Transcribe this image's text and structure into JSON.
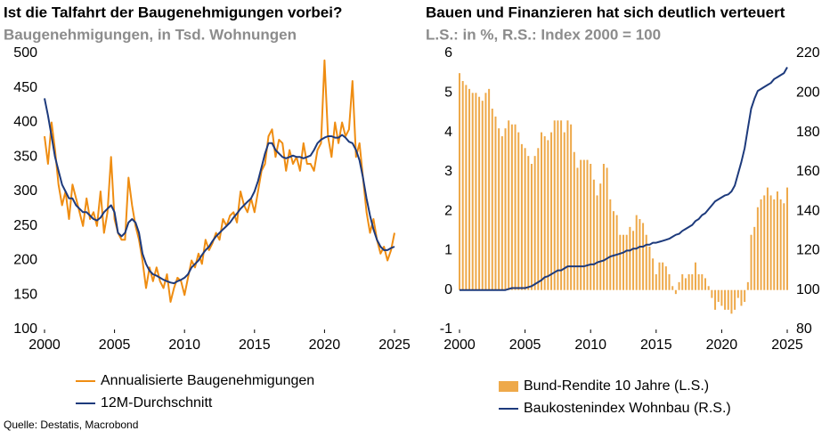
{
  "source": "Quelle: Destatis, Macrobond",
  "chart_data": [
    {
      "type": "line",
      "title": "Ist die Talfahrt der Baugenehmigungen vorbei?",
      "subtitle": "Baugenehmigungen, in Tsd. Wohnungen",
      "x": [
        2000,
        2000.25,
        2000.5,
        2000.75,
        2001,
        2001.25,
        2001.5,
        2001.75,
        2002,
        2002.25,
        2002.5,
        2002.75,
        2003,
        2003.25,
        2003.5,
        2003.75,
        2004,
        2004.25,
        2004.5,
        2004.75,
        2005,
        2005.25,
        2005.5,
        2005.75,
        2006,
        2006.25,
        2006.5,
        2006.75,
        2007,
        2007.25,
        2007.5,
        2007.75,
        2008,
        2008.25,
        2008.5,
        2008.75,
        2009,
        2009.25,
        2009.5,
        2009.75,
        2010,
        2010.25,
        2010.5,
        2010.75,
        2011,
        2011.25,
        2011.5,
        2011.75,
        2012,
        2012.25,
        2012.5,
        2012.75,
        2013,
        2013.25,
        2013.5,
        2013.75,
        2014,
        2014.25,
        2014.5,
        2014.75,
        2015,
        2015.25,
        2015.5,
        2015.75,
        2016,
        2016.25,
        2016.5,
        2016.75,
        2017,
        2017.25,
        2017.5,
        2017.75,
        2018,
        2018.25,
        2018.5,
        2018.75,
        2019,
        2019.25,
        2019.5,
        2019.75,
        2020,
        2020.25,
        2020.5,
        2020.75,
        2021,
        2021.25,
        2021.5,
        2021.75,
        2022,
        2022.25,
        2022.5,
        2022.75,
        2023,
        2023.25,
        2023.5,
        2023.75,
        2024,
        2024.25,
        2024.5,
        2024.75,
        2025
      ],
      "series": [
        {
          "name": "Annualisierte Baugenehmigungen",
          "color": "#ef8d12",
          "values": [
            380,
            340,
            400,
            360,
            310,
            280,
            300,
            260,
            310,
            290,
            270,
            250,
            290,
            260,
            270,
            250,
            300,
            240,
            270,
            350,
            260,
            240,
            230,
            230,
            320,
            280,
            250,
            230,
            200,
            160,
            190,
            170,
            190,
            170,
            160,
            180,
            140,
            160,
            175,
            170,
            150,
            175,
            200,
            190,
            210,
            195,
            230,
            215,
            225,
            240,
            230,
            260,
            250,
            265,
            270,
            255,
            300,
            280,
            270,
            290,
            270,
            300,
            330,
            340,
            380,
            390,
            350,
            375,
            370,
            330,
            360,
            340,
            350,
            330,
            370,
            340,
            340,
            330,
            360,
            370,
            490,
            380,
            350,
            400,
            370,
            400,
            380,
            390,
            460,
            350,
            370,
            320,
            270,
            240,
            260,
            230,
            210,
            220,
            200,
            215,
            240
          ]
        },
        {
          "name": "12M-Durchschnitt",
          "color": "#1d3a7c",
          "values": [
            435,
            410,
            380,
            350,
            330,
            310,
            300,
            290,
            290,
            280,
            275,
            270,
            270,
            265,
            260,
            258,
            262,
            270,
            275,
            280,
            270,
            240,
            235,
            240,
            255,
            260,
            255,
            240,
            210,
            195,
            185,
            180,
            178,
            175,
            172,
            170,
            168,
            167,
            170,
            172,
            175,
            180,
            190,
            195,
            200,
            208,
            215,
            220,
            228,
            235,
            240,
            245,
            250,
            255,
            262,
            268,
            275,
            280,
            285,
            290,
            300,
            315,
            335,
            355,
            370,
            370,
            360,
            355,
            350,
            348,
            350,
            352,
            350,
            350,
            348,
            350,
            352,
            360,
            370,
            375,
            378,
            380,
            380,
            378,
            378,
            382,
            378,
            372,
            370,
            360,
            345,
            320,
            290,
            265,
            245,
            230,
            220,
            215,
            215,
            218,
            220
          ]
        }
      ],
      "xlim": [
        2000,
        2025
      ],
      "xticks": [
        2000,
        2005,
        2010,
        2015,
        2020,
        2025
      ],
      "ylim": [
        100,
        500
      ],
      "yticks": [
        100,
        150,
        200,
        250,
        300,
        350,
        400,
        450,
        500
      ]
    },
    {
      "type": "combo",
      "title": "Bauen und Finanzieren hat sich deutlich verteuert",
      "subtitle": "L.S.: in %, R.S.: Index 2000 = 100",
      "x": [
        2000,
        2000.25,
        2000.5,
        2000.75,
        2001,
        2001.25,
        2001.5,
        2001.75,
        2002,
        2002.25,
        2002.5,
        2002.75,
        2003,
        2003.25,
        2003.5,
        2003.75,
        2004,
        2004.25,
        2004.5,
        2004.75,
        2005,
        2005.25,
        2005.5,
        2005.75,
        2006,
        2006.25,
        2006.5,
        2006.75,
        2007,
        2007.25,
        2007.5,
        2007.75,
        2008,
        2008.25,
        2008.5,
        2008.75,
        2009,
        2009.25,
        2009.5,
        2009.75,
        2010,
        2010.25,
        2010.5,
        2010.75,
        2011,
        2011.25,
        2011.5,
        2011.75,
        2012,
        2012.25,
        2012.5,
        2012.75,
        2013,
        2013.25,
        2013.5,
        2013.75,
        2014,
        2014.25,
        2014.5,
        2014.75,
        2015,
        2015.25,
        2015.5,
        2015.75,
        2016,
        2016.25,
        2016.5,
        2016.75,
        2017,
        2017.25,
        2017.5,
        2017.75,
        2018,
        2018.25,
        2018.5,
        2018.75,
        2019,
        2019.25,
        2019.5,
        2019.75,
        2020,
        2020.25,
        2020.5,
        2020.75,
        2021,
        2021.25,
        2021.5,
        2021.75,
        2022,
        2022.25,
        2022.5,
        2022.75,
        2023,
        2023.25,
        2023.5,
        2023.75,
        2024,
        2024.25,
        2024.5,
        2024.75,
        2025
      ],
      "series": [
        {
          "name": "Bund-Rendite 10 Jahre (L.S.)",
          "type": "bar",
          "color": "#eea94a",
          "values": [
            5.5,
            5.3,
            5.2,
            5.1,
            5.0,
            5.0,
            4.9,
            4.8,
            5.0,
            5.1,
            4.6,
            4.4,
            4.1,
            3.9,
            4.1,
            4.3,
            4.2,
            4.2,
            4.0,
            3.7,
            3.6,
            3.4,
            3.2,
            3.4,
            3.6,
            4.0,
            3.9,
            3.8,
            4.0,
            4.3,
            4.3,
            4.3,
            4.0,
            4.3,
            4.2,
            3.5,
            3.1,
            3.3,
            3.3,
            3.3,
            3.2,
            2.8,
            2.4,
            2.7,
            3.2,
            3.1,
            2.3,
            2.0,
            1.9,
            1.4,
            1.4,
            1.4,
            1.6,
            1.5,
            1.9,
            1.8,
            1.7,
            1.4,
            1.1,
            0.8,
            0.4,
            0.7,
            0.7,
            0.6,
            0.4,
            0.1,
            -0.1,
            0.2,
            0.4,
            0.3,
            0.4,
            0.4,
            0.7,
            0.4,
            0.4,
            0.3,
            0.1,
            -0.2,
            -0.5,
            -0.3,
            -0.4,
            -0.5,
            -0.5,
            -0.6,
            -0.5,
            -0.2,
            -0.4,
            -0.3,
            0.2,
            1.4,
            1.6,
            2.1,
            2.3,
            2.4,
            2.6,
            2.4,
            2.3,
            2.5,
            2.3,
            2.2,
            2.6
          ]
        },
        {
          "name": "Baukostenindex Wohnbau (R.S.)",
          "type": "line",
          "axis": "y2",
          "color": "#1d3a7c",
          "values": [
            100,
            100,
            100,
            100,
            100,
            100,
            100,
            100,
            100,
            100,
            100,
            100,
            100,
            100,
            100,
            100.5,
            101,
            101,
            101,
            101,
            101,
            101.5,
            102,
            103,
            104,
            105,
            106.5,
            107,
            108,
            109,
            110,
            110,
            111,
            112,
            112,
            112,
            112,
            112,
            112,
            112.5,
            113,
            113,
            114,
            114.5,
            115,
            116,
            117,
            117.5,
            118,
            118.5,
            119,
            120,
            120,
            121,
            121,
            122,
            122,
            123,
            123,
            124,
            124,
            124.5,
            125,
            125.5,
            126,
            127,
            128,
            128.5,
            130,
            131,
            132,
            133,
            135,
            136,
            138,
            139,
            141,
            143,
            145,
            146,
            147,
            148,
            148.5,
            150,
            153,
            159,
            165,
            172,
            182,
            192,
            197,
            201,
            202,
            203,
            204,
            205,
            207,
            208,
            209,
            210,
            213
          ]
        }
      ],
      "xlim": [
        2000,
        2025
      ],
      "xticks": [
        2000,
        2005,
        2010,
        2015,
        2020,
        2025
      ],
      "ylim": [
        -1,
        6
      ],
      "yticks": [
        -1,
        0,
        1,
        2,
        3,
        4,
        5,
        6
      ],
      "y2lim": [
        80,
        220
      ],
      "y2ticks": [
        80,
        100,
        120,
        140,
        160,
        180,
        200,
        220
      ]
    }
  ]
}
